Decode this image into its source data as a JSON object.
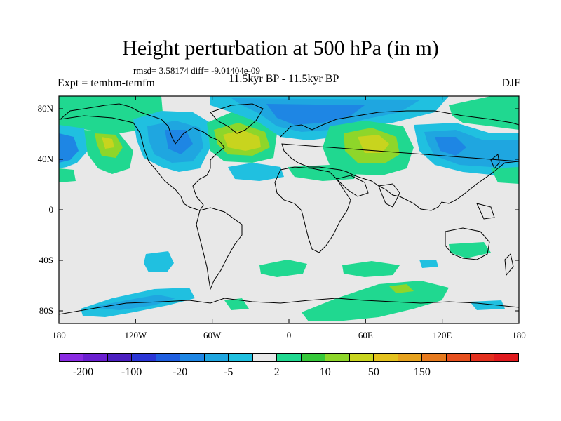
{
  "title": "Height perturbation at 500 hPa (in m)",
  "stats": "rmsd= 3.58174 diff= -9.01404e-09",
  "left_label": "Expt = temhm-temfm",
  "center_label": "11.5kyr BP - 11.5kyr BP",
  "right_label": "DJF",
  "y_ticks": [
    {
      "label": "80N",
      "lat": 80
    },
    {
      "label": "40N",
      "lat": 40
    },
    {
      "label": "0",
      "lat": 0
    },
    {
      "label": "40S",
      "lat": -40
    },
    {
      "label": "80S",
      "lat": -80
    }
  ],
  "x_ticks": [
    {
      "label": "180",
      "lon": -180
    },
    {
      "label": "120W",
      "lon": -120
    },
    {
      "label": "60W",
      "lon": -60
    },
    {
      "label": "0",
      "lon": 0
    },
    {
      "label": "60E",
      "lon": 60
    },
    {
      "label": "120E",
      "lon": 120
    },
    {
      "label": "180",
      "lon": 180
    }
  ],
  "colorbar": {
    "colors": [
      "#8a2be2",
      "#6a1fd0",
      "#4b1fc0",
      "#2b36d6",
      "#1f5fe0",
      "#1e86e4",
      "#1fa6e0",
      "#20c0e0",
      "#e8e8e8",
      "#20d890",
      "#36c83a",
      "#8ed62a",
      "#c8d41e",
      "#e4c21e",
      "#e6a21e",
      "#e67a1e",
      "#e6501e",
      "#e3301e",
      "#e01a1e"
    ],
    "labels": [
      {
        "text": "-200",
        "index": 1
      },
      {
        "text": "-100",
        "index": 3
      },
      {
        "text": "-20",
        "index": 5
      },
      {
        "text": "-5",
        "index": 7
      },
      {
        "text": "2",
        "index": 9
      },
      {
        "text": "10",
        "index": 11
      },
      {
        "text": "50",
        "index": 13
      },
      {
        "text": "150",
        "index": 15
      }
    ]
  },
  "background_color": "#e8e8e8"
}
